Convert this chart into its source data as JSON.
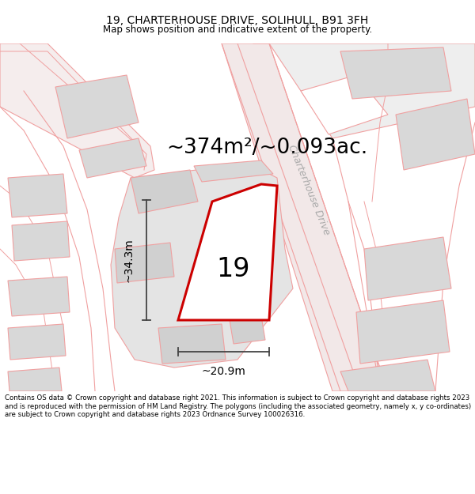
{
  "title_line1": "19, CHARTERHOUSE DRIVE, SOLIHULL, B91 3FH",
  "title_line2": "Map shows position and indicative extent of the property.",
  "area_text": "~374m²/~0.093ac.",
  "label_number": "19",
  "dim_width": "~20.9m",
  "dim_height": "~34.3m",
  "street_label": "Charterhouse Drive",
  "footer_text": "Contains OS data © Crown copyright and database right 2021. This information is subject to Crown copyright and database rights 2023 and is reproduced with the permission of HM Land Registry. The polygons (including the associated geometry, namely x, y co-ordinates) are subject to Crown copyright and database rights 2023 Ordnance Survey 100026316.",
  "property_edge_color": "#cc0000",
  "road_line_color": "#f0a0a0",
  "building_fill": "#d8d8d8",
  "block_fill": "#e4e4e4",
  "dim_line_color": "#444444",
  "title_fontsize": 10,
  "subtitle_fontsize": 8.5,
  "area_fontsize": 19,
  "number_fontsize": 24,
  "dim_fontsize": 10,
  "street_fontsize": 9,
  "footer_fontsize": 6.2
}
